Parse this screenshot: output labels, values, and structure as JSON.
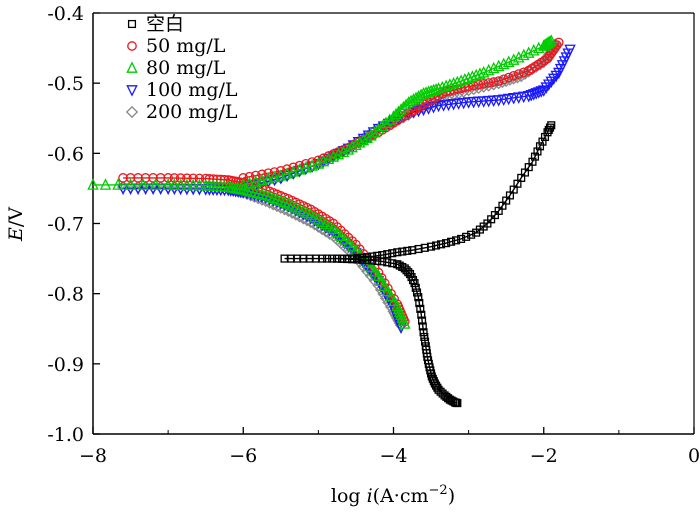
{
  "chart_data": {
    "type": "line",
    "title": "",
    "xlabel": {
      "prefix": "log ",
      "var": "i",
      "unit": "(A·cm",
      "exp": "−2",
      "close": ")"
    },
    "ylabel": {
      "var": "E",
      "unit": "/V"
    },
    "xlim": [
      -8,
      0
    ],
    "ylim": [
      -1.0,
      -0.4
    ],
    "xticks": [
      -8,
      -6,
      -4,
      -2,
      0
    ],
    "yticks": [
      -0.4,
      -0.5,
      -0.6,
      -0.7,
      -0.8,
      -0.9,
      -1.0
    ],
    "xtick_labels": [
      "−8",
      "−6",
      "−4",
      "−2",
      "0"
    ],
    "ytick_labels": [
      "-0.4",
      "-0.5",
      "-0.6",
      "-0.7",
      "-0.8",
      "-0.9",
      "-1.0"
    ],
    "grid": false,
    "legend_position": "top-left",
    "series": [
      {
        "name": "空白",
        "color": "#000000",
        "marker": "square",
        "x": [
          -5.45,
          -5.2,
          -4.95,
          -4.75,
          -4.55,
          -4.35,
          -4.15,
          -3.95,
          -3.85,
          -3.78,
          -3.72,
          -3.67,
          -3.63,
          -3.6,
          -3.57,
          -3.55,
          -3.52,
          -3.49,
          -3.45,
          -3.4,
          -3.32,
          -3.25,
          -3.18,
          -3.15
        ],
        "y": [
          -0.75,
          -0.75,
          -0.75,
          -0.75,
          -0.751,
          -0.752,
          -0.754,
          -0.758,
          -0.764,
          -0.772,
          -0.785,
          -0.805,
          -0.83,
          -0.855,
          -0.875,
          -0.89,
          -0.905,
          -0.918,
          -0.928,
          -0.937,
          -0.945,
          -0.951,
          -0.955,
          -0.956
        ],
        "x2": [
          -4.75,
          -4.55,
          -4.35,
          -4.15,
          -3.95,
          -3.75,
          -3.5,
          -3.3,
          -3.1,
          -2.9,
          -2.75,
          -2.6,
          -2.45,
          -2.3,
          -2.15,
          -2.05,
          -1.95,
          -1.9
        ],
        "y2": [
          -0.75,
          -0.75,
          -0.748,
          -0.745,
          -0.741,
          -0.738,
          -0.733,
          -0.728,
          -0.722,
          -0.713,
          -0.7,
          -0.682,
          -0.66,
          -0.635,
          -0.612,
          -0.59,
          -0.57,
          -0.56
        ]
      },
      {
        "name": "50 mg/L",
        "color": "#e8191f",
        "marker": "circle",
        "x": [
          -7.6,
          -7.0,
          -6.5,
          -6.2,
          -6.0,
          -5.7,
          -5.4,
          -5.1,
          -4.8,
          -4.5,
          -4.2,
          -3.95,
          -3.85
        ],
        "y": [
          -0.635,
          -0.635,
          -0.636,
          -0.638,
          -0.642,
          -0.652,
          -0.665,
          -0.68,
          -0.7,
          -0.73,
          -0.77,
          -0.815,
          -0.84
        ],
        "x2": [
          -6.0,
          -5.5,
          -5.0,
          -4.6,
          -4.2,
          -3.9,
          -3.6,
          -3.3,
          -3.0,
          -2.6,
          -2.2,
          -1.95,
          -1.8
        ],
        "y2": [
          -0.635,
          -0.625,
          -0.61,
          -0.592,
          -0.57,
          -0.55,
          -0.53,
          -0.512,
          -0.505,
          -0.497,
          -0.482,
          -0.465,
          -0.442
        ]
      },
      {
        "name": "80 mg/L",
        "color": "#00cc00",
        "marker": "triangle",
        "x": [
          -8.0,
          -7.0,
          -6.5,
          -6.2,
          -6.0,
          -5.7,
          -5.4,
          -5.1,
          -4.8,
          -4.5,
          -4.2,
          -3.95,
          -3.85
        ],
        "y": [
          -0.645,
          -0.645,
          -0.646,
          -0.648,
          -0.652,
          -0.66,
          -0.672,
          -0.688,
          -0.708,
          -0.738,
          -0.775,
          -0.818,
          -0.843
        ],
        "x2": [
          -6.0,
          -5.5,
          -5.0,
          -4.6,
          -4.3,
          -4.0,
          -3.8,
          -3.6,
          -3.4,
          -3.1,
          -2.8,
          -2.4,
          -2.0,
          -1.9
        ],
        "y2": [
          -0.645,
          -0.632,
          -0.615,
          -0.595,
          -0.575,
          -0.548,
          -0.528,
          -0.515,
          -0.508,
          -0.497,
          -0.485,
          -0.467,
          -0.447,
          -0.44
        ]
      },
      {
        "name": "100 mg/L",
        "color": "#1a1aff",
        "marker": "triangle-down",
        "x": [
          -7.6,
          -7.0,
          -6.5,
          -6.2,
          -6.0,
          -5.7,
          -5.4,
          -5.1,
          -4.8,
          -4.5,
          -4.2,
          -4.0,
          -3.9
        ],
        "y": [
          -0.65,
          -0.65,
          -0.651,
          -0.652,
          -0.655,
          -0.663,
          -0.675,
          -0.692,
          -0.712,
          -0.742,
          -0.782,
          -0.82,
          -0.848
        ],
        "x2": [
          -6.0,
          -5.5,
          -5.0,
          -4.6,
          -4.2,
          -3.8,
          -3.4,
          -3.0,
          -2.6,
          -2.2,
          -2.0,
          -1.8,
          -1.65
        ],
        "y2": [
          -0.65,
          -0.635,
          -0.615,
          -0.593,
          -0.565,
          -0.543,
          -0.532,
          -0.527,
          -0.524,
          -0.518,
          -0.51,
          -0.485,
          -0.452
        ]
      },
      {
        "name": "200 mg/L",
        "color": "#888888",
        "marker": "diamond",
        "x": [
          -7.6,
          -7.0,
          -6.5,
          -6.2,
          -6.0,
          -5.7,
          -5.4,
          -5.1,
          -4.8,
          -4.5,
          -4.2,
          -4.0,
          -3.9
        ],
        "y": [
          -0.648,
          -0.648,
          -0.649,
          -0.651,
          -0.656,
          -0.668,
          -0.682,
          -0.698,
          -0.718,
          -0.748,
          -0.788,
          -0.825,
          -0.845
        ],
        "x2": [
          -6.0,
          -5.5,
          -5.0,
          -4.6,
          -4.2,
          -3.8,
          -3.4,
          -3.0,
          -2.6,
          -2.3,
          -2.0,
          -1.9,
          -1.85
        ],
        "y2": [
          -0.648,
          -0.635,
          -0.615,
          -0.593,
          -0.565,
          -0.545,
          -0.523,
          -0.51,
          -0.5,
          -0.49,
          -0.47,
          -0.455,
          -0.445
        ]
      }
    ]
  }
}
